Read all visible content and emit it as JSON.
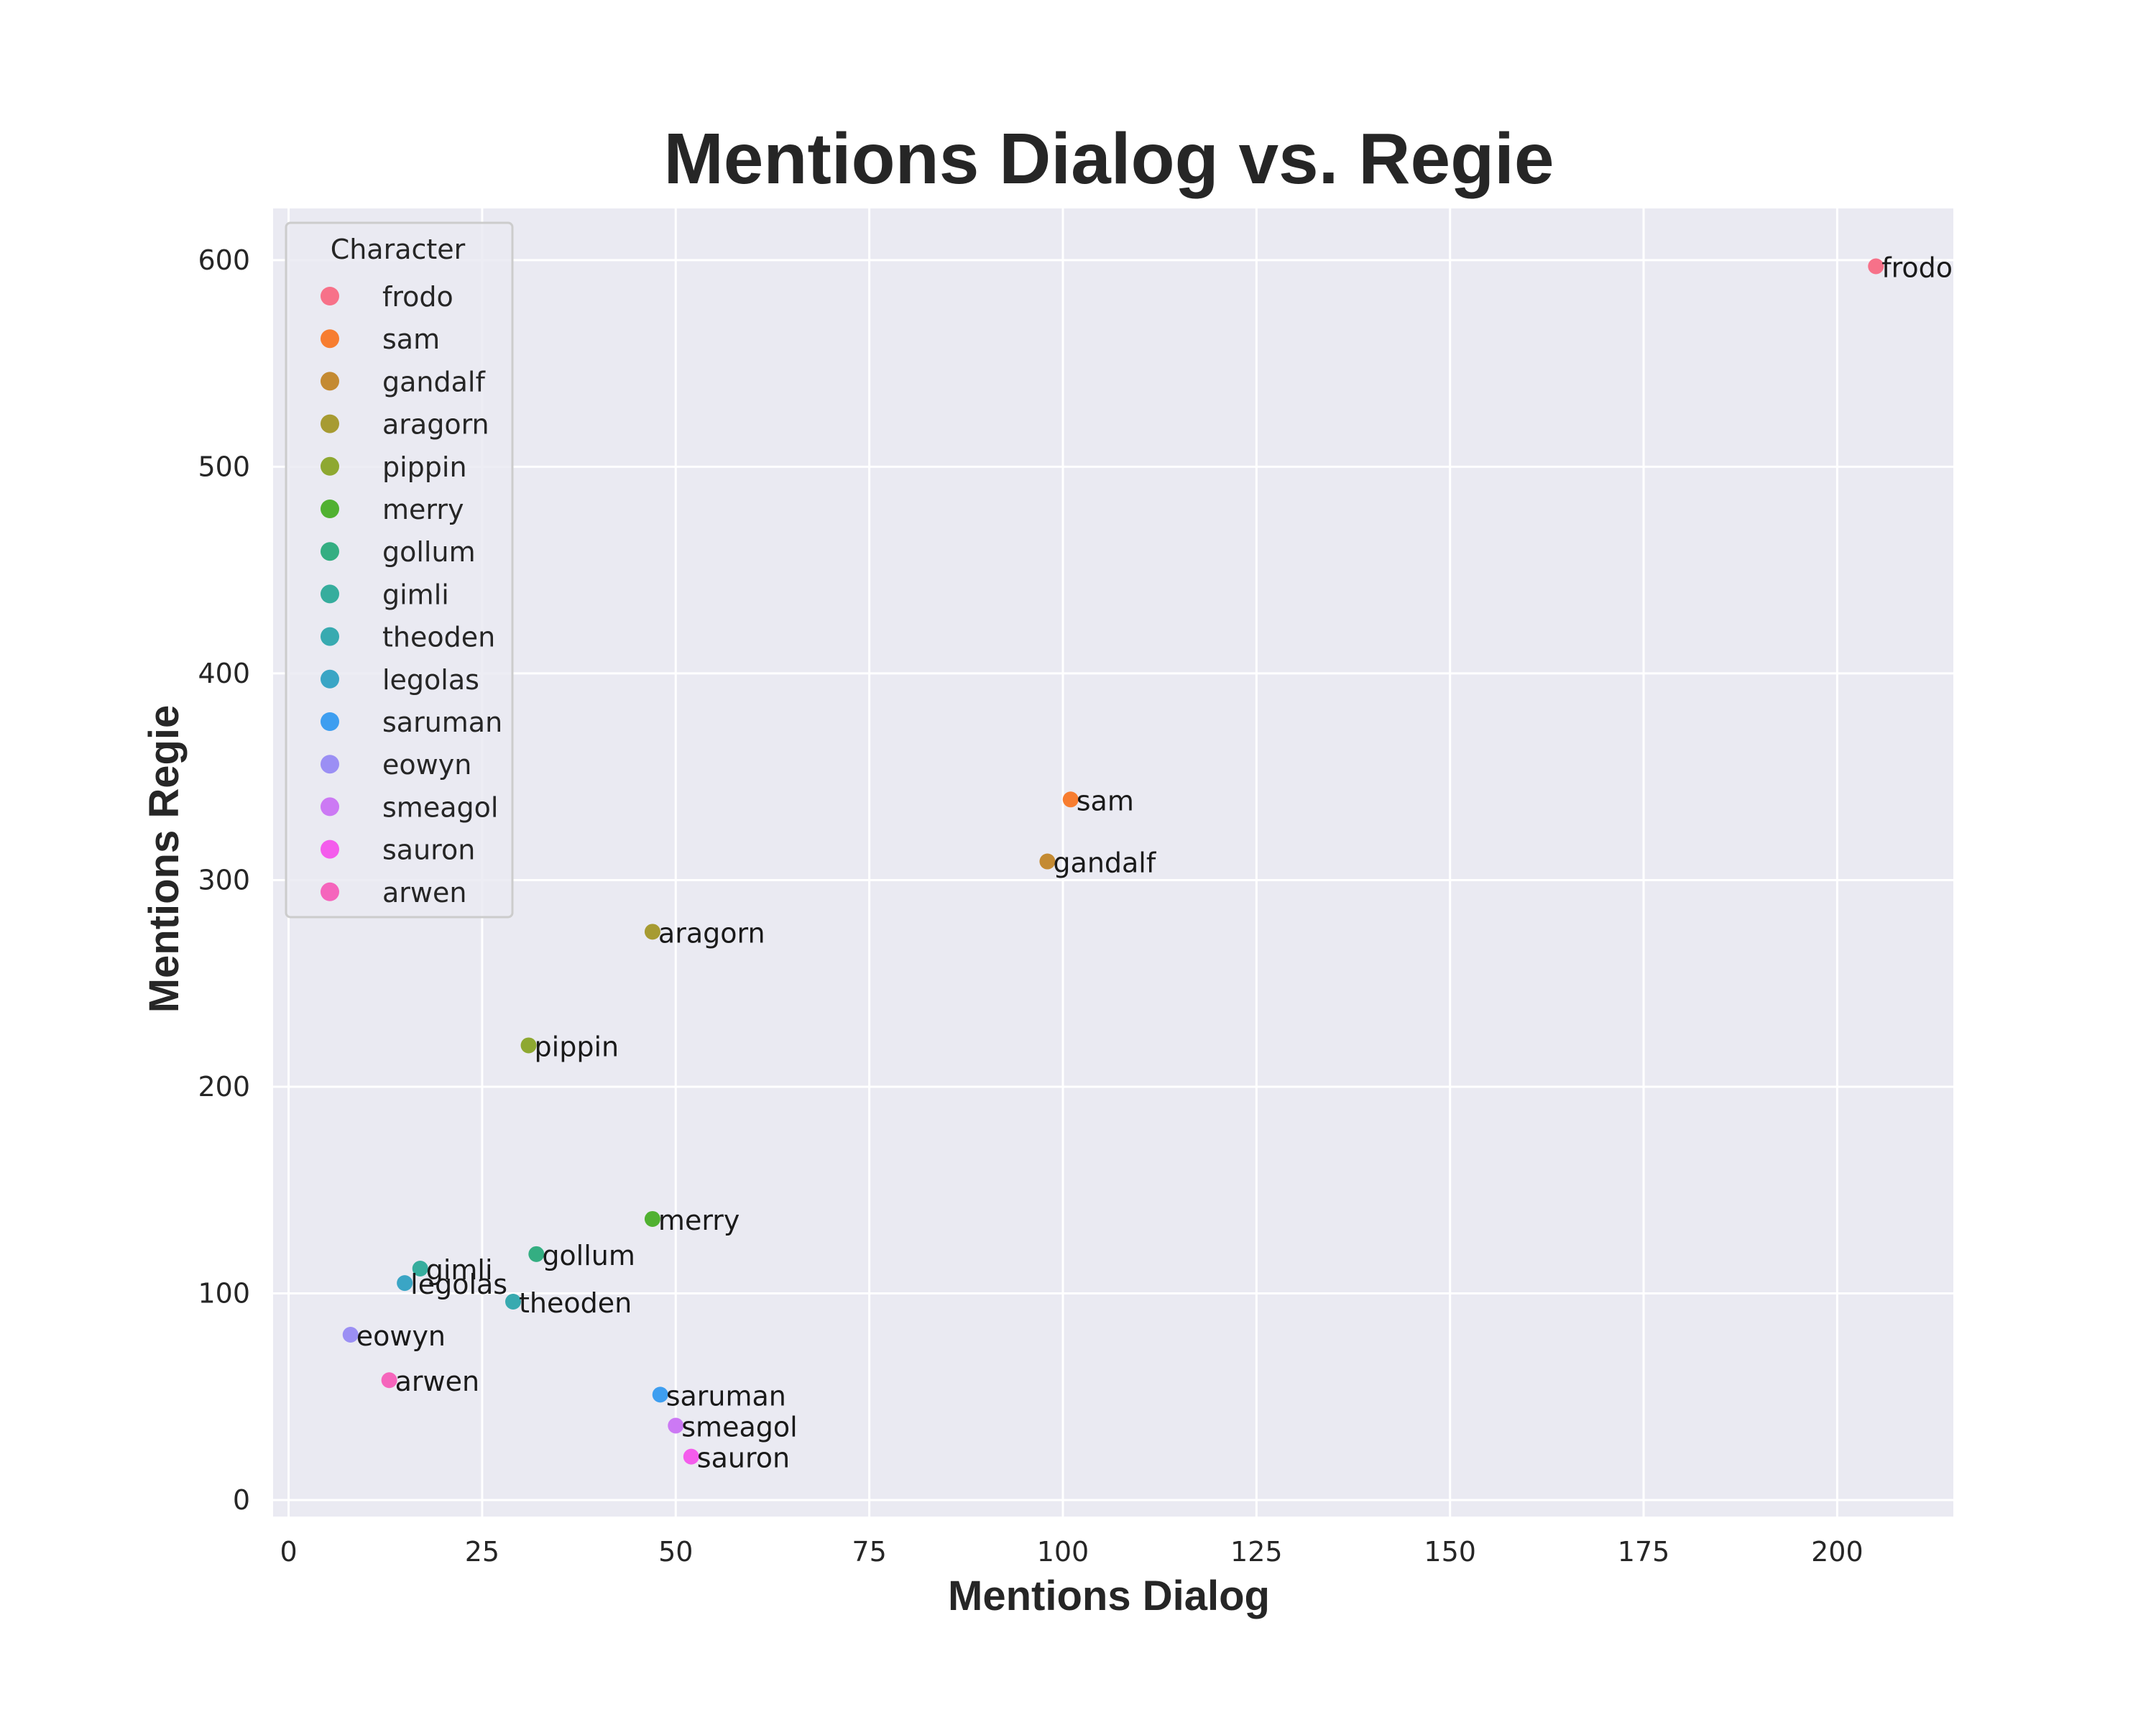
{
  "chart_data": {
    "type": "scatter",
    "title": "Mentions Dialog vs. Regie",
    "xlabel": "Mentions Dialog",
    "ylabel": "Mentions Regie",
    "xlim": [
      -2,
      215
    ],
    "ylim": [
      -8,
      625
    ],
    "xticks": [
      0,
      25,
      50,
      75,
      100,
      125,
      150,
      175,
      200
    ],
    "yticks": [
      0,
      100,
      200,
      300,
      400,
      500,
      600
    ],
    "grid": true,
    "background": "#eaeaf2",
    "legend": {
      "title": "Character",
      "position": "top-left"
    },
    "series": [
      {
        "name": "frodo",
        "x": 205,
        "y": 597,
        "color": "#f77189"
      },
      {
        "name": "sam",
        "x": 101,
        "y": 339,
        "color": "#f77d30"
      },
      {
        "name": "gandalf",
        "x": 98,
        "y": 309,
        "color": "#c48a32"
      },
      {
        "name": "aragorn",
        "x": 47,
        "y": 275,
        "color": "#a79b32"
      },
      {
        "name": "pippin",
        "x": 31,
        "y": 220,
        "color": "#8ea831"
      },
      {
        "name": "merry",
        "x": 47,
        "y": 136,
        "color": "#50b131"
      },
      {
        "name": "gollum",
        "x": 32,
        "y": 119,
        "color": "#34ae82"
      },
      {
        "name": "gimli",
        "x": 17,
        "y": 112,
        "color": "#36ad9d"
      },
      {
        "name": "theoden",
        "x": 29,
        "y": 96,
        "color": "#38aab0"
      },
      {
        "name": "legolas",
        "x": 15,
        "y": 105,
        "color": "#3aa5c5"
      },
      {
        "name": "saruman",
        "x": 48,
        "y": 51,
        "color": "#3e9ef0"
      },
      {
        "name": "eowyn",
        "x": 8,
        "y": 80,
        "color": "#9b8ff4"
      },
      {
        "name": "smeagol",
        "x": 50,
        "y": 36,
        "color": "#cc79f4"
      },
      {
        "name": "sauron",
        "x": 52,
        "y": 21,
        "color": "#f45cec"
      },
      {
        "name": "arwen",
        "x": 13,
        "y": 58,
        "color": "#f565bc"
      }
    ]
  }
}
